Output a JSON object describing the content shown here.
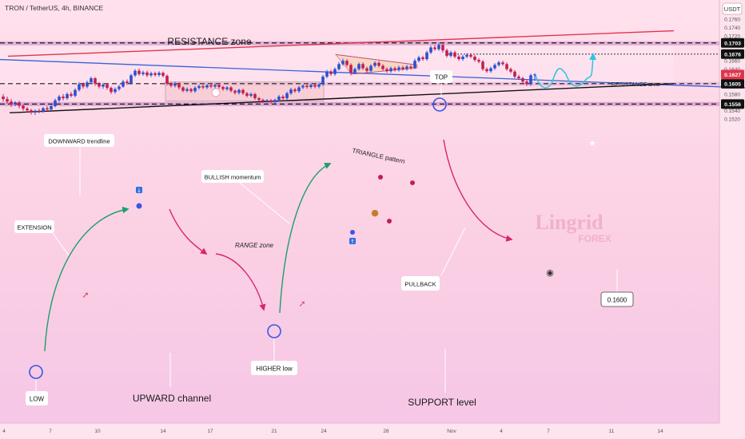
{
  "header": {
    "symbol": "TRON / TetherUS, 4h, BINANCE",
    "currency_button": "USDT"
  },
  "colors": {
    "bull": "#2b4fcf",
    "bear": "#c21f4e",
    "resistance_line": "#e0364c",
    "downtrend_line": "#3a62d8",
    "upward_channel_line": "#111111",
    "price_tag": "#e0364c",
    "level_tag": "#111111",
    "projection": "#29c7e0"
  },
  "annotations": {
    "resistance_zone": "RESISTANCE zone",
    "resistance_area": "RESISTANCE area",
    "top": "TOP",
    "downward_trendline": "DOWNWARD trendline",
    "triangle_pattern": "TRIANGLE pattern",
    "bullish_momentum": "BULLISH momentum",
    "extension": "EXTENSION",
    "range_zone": "RANGE zone",
    "pullback": "PULLBACK",
    "level_0_1600": "0.1600",
    "higher_low": "HIGHER low",
    "low": "LOW",
    "upward_channel": "UPWARD channel",
    "support_level": "SUPPORT level"
  },
  "watermark": {
    "line1": "Lingrid",
    "line2": "FOREX"
  },
  "chart_data": {
    "type": "candlestick",
    "ylim": [
      0.1505,
      0.1775
    ],
    "x_axis_labels": [
      "4",
      "7",
      "10",
      "14",
      "17",
      "21",
      "24",
      "28",
      "Nov",
      "4",
      "7",
      "11",
      "14"
    ],
    "y_axis_labels": [
      "0.1760",
      "0.1740",
      "0.1720",
      "0.1700",
      "0.1680",
      "0.1660",
      "0.1640",
      "0.1620",
      "0.1600",
      "0.1580",
      "0.1560",
      "0.1540",
      "0.1520"
    ],
    "current_price": "0.1627",
    "key_levels": [
      {
        "value": 0.1703,
        "label": "0.1703"
      },
      {
        "value": 0.1676,
        "label": "0.1676"
      },
      {
        "value": 0.1605,
        "label": "0.1605"
      },
      {
        "value": 0.1556,
        "label": "0.1556"
      }
    ],
    "candles": [
      {
        "x": 4,
        "o": 0.1574,
        "c": 0.1568,
        "h": 0.158,
        "l": 0.1562
      },
      {
        "x": 9,
        "o": 0.1568,
        "c": 0.1562,
        "h": 0.1574,
        "l": 0.1557
      },
      {
        "x": 14,
        "o": 0.1562,
        "c": 0.1555,
        "h": 0.1568,
        "l": 0.1549
      },
      {
        "x": 19,
        "o": 0.1555,
        "c": 0.156,
        "h": 0.1563,
        "l": 0.1551
      },
      {
        "x": 24,
        "o": 0.156,
        "c": 0.1552,
        "h": 0.1564,
        "l": 0.1546
      },
      {
        "x": 29,
        "o": 0.1552,
        "c": 0.1545,
        "h": 0.1556,
        "l": 0.154
      },
      {
        "x": 34,
        "o": 0.1545,
        "c": 0.1541,
        "h": 0.1549,
        "l": 0.1536
      },
      {
        "x": 39,
        "o": 0.1541,
        "c": 0.1536,
        "h": 0.1545,
        "l": 0.1531
      },
      {
        "x": 44,
        "o": 0.1536,
        "c": 0.154,
        "h": 0.1543,
        "l": 0.153
      },
      {
        "x": 49,
        "o": 0.154,
        "c": 0.1538,
        "h": 0.1545,
        "l": 0.1534
      },
      {
        "x": 54,
        "o": 0.1538,
        "c": 0.1546,
        "h": 0.1549,
        "l": 0.1535
      },
      {
        "x": 59,
        "o": 0.1546,
        "c": 0.1543,
        "h": 0.1551,
        "l": 0.1539
      },
      {
        "x": 64,
        "o": 0.1543,
        "c": 0.1551,
        "h": 0.1554,
        "l": 0.154
      },
      {
        "x": 69,
        "o": 0.1551,
        "c": 0.1565,
        "h": 0.1569,
        "l": 0.1548
      },
      {
        "x": 74,
        "o": 0.1565,
        "c": 0.1574,
        "h": 0.1578,
        "l": 0.1561
      },
      {
        "x": 79,
        "o": 0.1574,
        "c": 0.157,
        "h": 0.158,
        "l": 0.1565
      },
      {
        "x": 84,
        "o": 0.157,
        "c": 0.158,
        "h": 0.1584,
        "l": 0.1566
      },
      {
        "x": 89,
        "o": 0.158,
        "c": 0.1576,
        "h": 0.1585,
        "l": 0.1572
      },
      {
        "x": 94,
        "o": 0.1576,
        "c": 0.159,
        "h": 0.1594,
        "l": 0.1572
      },
      {
        "x": 99,
        "o": 0.159,
        "c": 0.1604,
        "h": 0.1609,
        "l": 0.1586
      },
      {
        "x": 104,
        "o": 0.1604,
        "c": 0.1598,
        "h": 0.1608,
        "l": 0.1593
      },
      {
        "x": 109,
        "o": 0.1598,
        "c": 0.1608,
        "h": 0.1612,
        "l": 0.1594
      },
      {
        "x": 114,
        "o": 0.1608,
        "c": 0.1618,
        "h": 0.1622,
        "l": 0.1604
      },
      {
        "x": 119,
        "o": 0.1618,
        "c": 0.1605,
        "h": 0.1621,
        "l": 0.16
      },
      {
        "x": 124,
        "o": 0.1605,
        "c": 0.1598,
        "h": 0.1609,
        "l": 0.1594
      },
      {
        "x": 129,
        "o": 0.1598,
        "c": 0.1603,
        "h": 0.1607,
        "l": 0.1593
      },
      {
        "x": 134,
        "o": 0.1603,
        "c": 0.1595,
        "h": 0.1606,
        "l": 0.159
      },
      {
        "x": 139,
        "o": 0.1595,
        "c": 0.1585,
        "h": 0.1598,
        "l": 0.158
      },
      {
        "x": 144,
        "o": 0.1585,
        "c": 0.1592,
        "h": 0.1596,
        "l": 0.1581
      },
      {
        "x": 149,
        "o": 0.1592,
        "c": 0.1598,
        "h": 0.1602,
        "l": 0.1588
      },
      {
        "x": 154,
        "o": 0.1598,
        "c": 0.161,
        "h": 0.1614,
        "l": 0.1595
      },
      {
        "x": 159,
        "o": 0.161,
        "c": 0.1606,
        "h": 0.1615,
        "l": 0.1602
      },
      {
        "x": 164,
        "o": 0.1606,
        "c": 0.1625,
        "h": 0.1629,
        "l": 0.1603
      },
      {
        "x": 169,
        "o": 0.1625,
        "c": 0.1636,
        "h": 0.164,
        "l": 0.1621
      },
      {
        "x": 174,
        "o": 0.1636,
        "c": 0.1628,
        "h": 0.1641,
        "l": 0.1624
      },
      {
        "x": 179,
        "o": 0.1628,
        "c": 0.1632,
        "h": 0.1636,
        "l": 0.1624
      },
      {
        "x": 184,
        "o": 0.1632,
        "c": 0.1625,
        "h": 0.1636,
        "l": 0.1621
      },
      {
        "x": 189,
        "o": 0.1625,
        "c": 0.163,
        "h": 0.1634,
        "l": 0.1621
      },
      {
        "x": 194,
        "o": 0.163,
        "c": 0.1626,
        "h": 0.1634,
        "l": 0.1622
      },
      {
        "x": 199,
        "o": 0.1626,
        "c": 0.1631,
        "h": 0.1635,
        "l": 0.1622
      },
      {
        "x": 204,
        "o": 0.1631,
        "c": 0.1624,
        "h": 0.1634,
        "l": 0.162
      },
      {
        "x": 209,
        "o": 0.1624,
        "c": 0.1605,
        "h": 0.1627,
        "l": 0.1601
      },
      {
        "x": 214,
        "o": 0.1605,
        "c": 0.16,
        "h": 0.1609,
        "l": 0.1596
      },
      {
        "x": 219,
        "o": 0.16,
        "c": 0.1606,
        "h": 0.161,
        "l": 0.1596
      },
      {
        "x": 224,
        "o": 0.1606,
        "c": 0.1596,
        "h": 0.1609,
        "l": 0.1591
      },
      {
        "x": 229,
        "o": 0.1596,
        "c": 0.1588,
        "h": 0.1599,
        "l": 0.1584
      },
      {
        "x": 234,
        "o": 0.1588,
        "c": 0.1592,
        "h": 0.1596,
        "l": 0.1584
      },
      {
        "x": 239,
        "o": 0.1592,
        "c": 0.1587,
        "h": 0.1595,
        "l": 0.1583
      },
      {
        "x": 244,
        "o": 0.1587,
        "c": 0.1595,
        "h": 0.1599,
        "l": 0.1583
      },
      {
        "x": 249,
        "o": 0.1595,
        "c": 0.1599,
        "h": 0.1603,
        "l": 0.1591
      },
      {
        "x": 254,
        "o": 0.1599,
        "c": 0.1596,
        "h": 0.1603,
        "l": 0.1592
      },
      {
        "x": 259,
        "o": 0.1596,
        "c": 0.1601,
        "h": 0.1605,
        "l": 0.1592
      },
      {
        "x": 264,
        "o": 0.1601,
        "c": 0.1598,
        "h": 0.1604,
        "l": 0.1594
      },
      {
        "x": 269,
        "o": 0.1598,
        "c": 0.1602,
        "h": 0.1606,
        "l": 0.1594
      },
      {
        "x": 274,
        "o": 0.1602,
        "c": 0.1597,
        "h": 0.1605,
        "l": 0.1593
      },
      {
        "x": 279,
        "o": 0.1597,
        "c": 0.1592,
        "h": 0.16,
        "l": 0.1588
      },
      {
        "x": 284,
        "o": 0.1592,
        "c": 0.1596,
        "h": 0.1599,
        "l": 0.1588
      },
      {
        "x": 289,
        "o": 0.1596,
        "c": 0.1588,
        "h": 0.1599,
        "l": 0.1584
      },
      {
        "x": 294,
        "o": 0.1588,
        "c": 0.1583,
        "h": 0.1591,
        "l": 0.1579
      },
      {
        "x": 299,
        "o": 0.1583,
        "c": 0.159,
        "h": 0.1593,
        "l": 0.1579
      },
      {
        "x": 304,
        "o": 0.159,
        "c": 0.1582,
        "h": 0.1593,
        "l": 0.1578
      },
      {
        "x": 309,
        "o": 0.1582,
        "c": 0.1576,
        "h": 0.1585,
        "l": 0.1572
      },
      {
        "x": 314,
        "o": 0.1576,
        "c": 0.158,
        "h": 0.1584,
        "l": 0.1572
      },
      {
        "x": 319,
        "o": 0.158,
        "c": 0.157,
        "h": 0.1583,
        "l": 0.1566
      },
      {
        "x": 324,
        "o": 0.157,
        "c": 0.1566,
        "h": 0.1573,
        "l": 0.1562
      },
      {
        "x": 329,
        "o": 0.1566,
        "c": 0.1562,
        "h": 0.1569,
        "l": 0.1559
      },
      {
        "x": 334,
        "o": 0.1562,
        "c": 0.1565,
        "h": 0.1568,
        "l": 0.1559
      },
      {
        "x": 339,
        "o": 0.1565,
        "c": 0.1561,
        "h": 0.1568,
        "l": 0.1557
      },
      {
        "x": 344,
        "o": 0.1561,
        "c": 0.1566,
        "h": 0.1569,
        "l": 0.1557
      },
      {
        "x": 349,
        "o": 0.1566,
        "c": 0.1574,
        "h": 0.1578,
        "l": 0.1563
      },
      {
        "x": 354,
        "o": 0.1574,
        "c": 0.157,
        "h": 0.1578,
        "l": 0.1566
      },
      {
        "x": 359,
        "o": 0.157,
        "c": 0.1582,
        "h": 0.1586,
        "l": 0.1566
      },
      {
        "x": 364,
        "o": 0.1582,
        "c": 0.1591,
        "h": 0.1595,
        "l": 0.1578
      },
      {
        "x": 369,
        "o": 0.1591,
        "c": 0.1587,
        "h": 0.1595,
        "l": 0.1583
      },
      {
        "x": 374,
        "o": 0.1587,
        "c": 0.1596,
        "h": 0.16,
        "l": 0.1583
      },
      {
        "x": 379,
        "o": 0.1596,
        "c": 0.16,
        "h": 0.1604,
        "l": 0.1592
      },
      {
        "x": 384,
        "o": 0.16,
        "c": 0.1597,
        "h": 0.1605,
        "l": 0.1593
      },
      {
        "x": 389,
        "o": 0.1597,
        "c": 0.1602,
        "h": 0.1606,
        "l": 0.1593
      },
      {
        "x": 394,
        "o": 0.1602,
        "c": 0.1598,
        "h": 0.1606,
        "l": 0.1594
      },
      {
        "x": 399,
        "o": 0.1598,
        "c": 0.1603,
        "h": 0.1607,
        "l": 0.1594
      },
      {
        "x": 404,
        "o": 0.1603,
        "c": 0.1622,
        "h": 0.1626,
        "l": 0.16
      },
      {
        "x": 409,
        "o": 0.1622,
        "c": 0.1634,
        "h": 0.1638,
        "l": 0.1618
      },
      {
        "x": 414,
        "o": 0.1634,
        "c": 0.1628,
        "h": 0.1638,
        "l": 0.1624
      },
      {
        "x": 419,
        "o": 0.1628,
        "c": 0.164,
        "h": 0.1644,
        "l": 0.1624
      },
      {
        "x": 424,
        "o": 0.164,
        "c": 0.1652,
        "h": 0.1657,
        "l": 0.1636
      },
      {
        "x": 429,
        "o": 0.1652,
        "c": 0.166,
        "h": 0.1665,
        "l": 0.1648
      },
      {
        "x": 434,
        "o": 0.166,
        "c": 0.165,
        "h": 0.1664,
        "l": 0.1646
      },
      {
        "x": 439,
        "o": 0.165,
        "c": 0.1632,
        "h": 0.1654,
        "l": 0.1625
      },
      {
        "x": 444,
        "o": 0.1632,
        "c": 0.164,
        "h": 0.1644,
        "l": 0.1628
      },
      {
        "x": 449,
        "o": 0.164,
        "c": 0.1652,
        "h": 0.1656,
        "l": 0.1636
      },
      {
        "x": 454,
        "o": 0.1652,
        "c": 0.1642,
        "h": 0.1656,
        "l": 0.1638
      },
      {
        "x": 459,
        "o": 0.1642,
        "c": 0.1636,
        "h": 0.1646,
        "l": 0.1632
      },
      {
        "x": 464,
        "o": 0.1636,
        "c": 0.1648,
        "h": 0.1652,
        "l": 0.1632
      },
      {
        "x": 469,
        "o": 0.1648,
        "c": 0.1655,
        "h": 0.1659,
        "l": 0.1644
      },
      {
        "x": 474,
        "o": 0.1655,
        "c": 0.1648,
        "h": 0.1659,
        "l": 0.1644
      },
      {
        "x": 479,
        "o": 0.1648,
        "c": 0.164,
        "h": 0.1652,
        "l": 0.1636
      },
      {
        "x": 484,
        "o": 0.164,
        "c": 0.1635,
        "h": 0.1644,
        "l": 0.1631
      },
      {
        "x": 489,
        "o": 0.1635,
        "c": 0.1642,
        "h": 0.1646,
        "l": 0.1631
      },
      {
        "x": 494,
        "o": 0.1642,
        "c": 0.1638,
        "h": 0.1646,
        "l": 0.1634
      },
      {
        "x": 499,
        "o": 0.1638,
        "c": 0.1644,
        "h": 0.1648,
        "l": 0.1634
      },
      {
        "x": 504,
        "o": 0.1644,
        "c": 0.164,
        "h": 0.1648,
        "l": 0.1636
      },
      {
        "x": 509,
        "o": 0.164,
        "c": 0.1646,
        "h": 0.165,
        "l": 0.1636
      },
      {
        "x": 514,
        "o": 0.1646,
        "c": 0.1643,
        "h": 0.165,
        "l": 0.1639
      },
      {
        "x": 519,
        "o": 0.1643,
        "c": 0.166,
        "h": 0.1665,
        "l": 0.164
      },
      {
        "x": 524,
        "o": 0.166,
        "c": 0.1668,
        "h": 0.1672,
        "l": 0.1656
      },
      {
        "x": 529,
        "o": 0.1668,
        "c": 0.1664,
        "h": 0.1672,
        "l": 0.166
      },
      {
        "x": 534,
        "o": 0.1664,
        "c": 0.168,
        "h": 0.1684,
        "l": 0.166
      },
      {
        "x": 539,
        "o": 0.168,
        "c": 0.1692,
        "h": 0.1696,
        "l": 0.1676
      },
      {
        "x": 544,
        "o": 0.1692,
        "c": 0.1688,
        "h": 0.1698,
        "l": 0.1684
      },
      {
        "x": 549,
        "o": 0.1688,
        "c": 0.1698,
        "h": 0.1703,
        "l": 0.1684
      },
      {
        "x": 554,
        "o": 0.1698,
        "c": 0.1685,
        "h": 0.1705,
        "l": 0.168
      },
      {
        "x": 559,
        "o": 0.1685,
        "c": 0.1672,
        "h": 0.1689,
        "l": 0.1668
      },
      {
        "x": 564,
        "o": 0.1672,
        "c": 0.168,
        "h": 0.1684,
        "l": 0.1668
      },
      {
        "x": 569,
        "o": 0.168,
        "c": 0.167,
        "h": 0.1684,
        "l": 0.1666
      },
      {
        "x": 574,
        "o": 0.167,
        "c": 0.1664,
        "h": 0.1674,
        "l": 0.166
      },
      {
        "x": 579,
        "o": 0.1664,
        "c": 0.167,
        "h": 0.1674,
        "l": 0.166
      },
      {
        "x": 584,
        "o": 0.167,
        "c": 0.1674,
        "h": 0.1678,
        "l": 0.1666
      },
      {
        "x": 589,
        "o": 0.1674,
        "c": 0.167,
        "h": 0.1678,
        "l": 0.1666
      },
      {
        "x": 594,
        "o": 0.167,
        "c": 0.1662,
        "h": 0.1674,
        "l": 0.1658
      },
      {
        "x": 599,
        "o": 0.1662,
        "c": 0.1658,
        "h": 0.1666,
        "l": 0.1654
      },
      {
        "x": 604,
        "o": 0.1658,
        "c": 0.164,
        "h": 0.1662,
        "l": 0.1636
      },
      {
        "x": 609,
        "o": 0.164,
        "c": 0.1635,
        "h": 0.1644,
        "l": 0.1631
      },
      {
        "x": 614,
        "o": 0.1635,
        "c": 0.1642,
        "h": 0.1646,
        "l": 0.1631
      },
      {
        "x": 619,
        "o": 0.1642,
        "c": 0.165,
        "h": 0.1654,
        "l": 0.1638
      },
      {
        "x": 624,
        "o": 0.165,
        "c": 0.1656,
        "h": 0.166,
        "l": 0.1646
      },
      {
        "x": 629,
        "o": 0.1656,
        "c": 0.1652,
        "h": 0.166,
        "l": 0.1648
      },
      {
        "x": 634,
        "o": 0.1652,
        "c": 0.164,
        "h": 0.1656,
        "l": 0.1636
      },
      {
        "x": 639,
        "o": 0.164,
        "c": 0.1634,
        "h": 0.1644,
        "l": 0.163
      },
      {
        "x": 644,
        "o": 0.1634,
        "c": 0.1622,
        "h": 0.1638,
        "l": 0.1618
      },
      {
        "x": 649,
        "o": 0.1622,
        "c": 0.1618,
        "h": 0.1626,
        "l": 0.1614
      },
      {
        "x": 654,
        "o": 0.1618,
        "c": 0.161,
        "h": 0.1622,
        "l": 0.1606
      },
      {
        "x": 659,
        "o": 0.161,
        "c": 0.1604,
        "h": 0.1614,
        "l": 0.16
      },
      {
        "x": 664,
        "o": 0.1604,
        "c": 0.1625,
        "h": 0.1629,
        "l": 0.16
      },
      {
        "x": 669,
        "o": 0.1625,
        "c": 0.1627,
        "h": 0.163,
        "l": 0.1612
      }
    ],
    "overlays": {
      "resistance_line": [
        [
          10,
          0.1671
        ],
        [
          843,
          0.1732
        ]
      ],
      "downward_trendline": [
        [
          0,
          0.1663
        ],
        [
          932,
          0.1595
        ]
      ],
      "upward_channel": [
        [
          12,
          0.1535
        ],
        [
          843,
          0.1605
        ]
      ],
      "triangle_upper": [
        [
          420,
          0.1675
        ],
        [
          522,
          0.165
        ]
      ],
      "triangle_lower": [
        [
          440,
          0.1628
        ],
        [
          522,
          0.1643
        ]
      ],
      "projection_path": [
        [
          670,
          0.1625
        ],
        [
          690,
          0.1605
        ],
        [
          708,
          0.1628
        ],
        [
          730,
          0.1608
        ],
        [
          742,
          0.1676
        ]
      ],
      "zones": [
        {
          "name": "resistance",
          "x0": 0,
          "x1": 900,
          "y0": 0.1697,
          "y1": 0.1707
        },
        {
          "name": "support",
          "x0": 0,
          "x1": 900,
          "y0": 0.1551,
          "y1": 0.1561
        },
        {
          "name": "mid",
          "x0": 205,
          "x1": 900,
          "y0": 0.16,
          "y1": 0.1609
        },
        {
          "name": "range",
          "x0": 207,
          "x1": 405,
          "y0": 0.1563,
          "y1": 0.1609
        },
        {
          "name": "triangle",
          "x0": 420,
          "x1": 524,
          "y0": 0.1628,
          "y1": 0.1675
        }
      ]
    }
  }
}
